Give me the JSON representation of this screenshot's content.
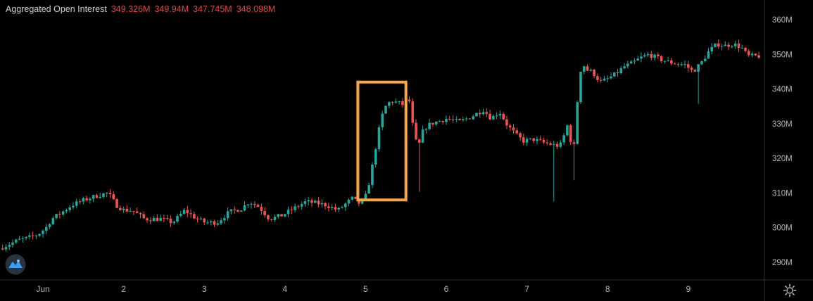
{
  "legend": {
    "title": "Aggregated Open Interest",
    "values": [
      "349.326M",
      "349.94M",
      "347.745M",
      "348.098M"
    ]
  },
  "colors": {
    "background": "#000000",
    "up": "#26a69a",
    "down": "#ef5350",
    "highlight": "#f7a64a",
    "axis_text": "#b2b5be",
    "legend_value": "#e0484b"
  },
  "icons": {
    "logo": "tradingview-logo-icon",
    "settings": "gear-icon"
  },
  "chart_data": {
    "type": "candlestick",
    "title": "Aggregated Open Interest",
    "ylim": [
      284,
      364
    ],
    "y_ticks": [
      "290M",
      "300M",
      "310M",
      "320M",
      "330M",
      "340M",
      "350M",
      "360M"
    ],
    "y_tick_values": [
      290,
      300,
      310,
      320,
      330,
      340,
      350,
      360
    ],
    "x_ticks": [
      "Jun",
      "2",
      "3",
      "4",
      "5",
      "6",
      "7",
      "8",
      "9"
    ],
    "x_tick_days": [
      1,
      2,
      3,
      4,
      5,
      6,
      7,
      8,
      9
    ],
    "xlim_days": [
      0.5,
      9.93
    ],
    "series_anchors": [
      [
        0.5,
        294
      ],
      [
        0.6,
        295
      ],
      [
        0.75,
        296.5
      ],
      [
        0.85,
        297
      ],
      [
        0.98,
        298
      ],
      [
        1.08,
        300
      ],
      [
        1.15,
        302.5
      ],
      [
        1.25,
        304
      ],
      [
        1.4,
        306.5
      ],
      [
        1.55,
        308
      ],
      [
        1.75,
        309.5
      ],
      [
        1.85,
        310
      ],
      [
        1.95,
        306.5
      ],
      [
        2.05,
        305
      ],
      [
        2.15,
        305
      ],
      [
        2.3,
        302.5
      ],
      [
        2.5,
        302.5
      ],
      [
        2.65,
        301.5
      ],
      [
        2.8,
        305
      ],
      [
        2.95,
        302.5
      ],
      [
        3.05,
        301.5
      ],
      [
        3.2,
        301.5
      ],
      [
        3.35,
        304.5
      ],
      [
        3.5,
        305.5
      ],
      [
        3.6,
        307.5
      ],
      [
        3.72,
        306
      ],
      [
        3.85,
        302.5
      ],
      [
        4.0,
        303.5
      ],
      [
        4.15,
        305.5
      ],
      [
        4.3,
        307.5
      ],
      [
        4.45,
        307
      ],
      [
        4.55,
        306.5
      ],
      [
        4.7,
        305
      ],
      [
        4.8,
        307
      ],
      [
        4.88,
        308.5
      ],
      [
        4.95,
        307
      ],
      [
        5.0,
        307.5
      ],
      [
        5.05,
        309.5
      ],
      [
        5.1,
        314.5
      ],
      [
        5.15,
        321
      ],
      [
        5.2,
        327.5
      ],
      [
        5.25,
        332.5
      ],
      [
        5.3,
        335.5
      ],
      [
        5.36,
        336.5
      ],
      [
        5.45,
        336
      ],
      [
        5.5,
        335.5
      ],
      [
        5.56,
        337
      ],
      [
        5.6,
        336
      ],
      [
        5.64,
        326
      ],
      [
        5.7,
        323.5
      ],
      [
        5.76,
        328.5
      ],
      [
        5.85,
        330
      ],
      [
        6.05,
        331.5
      ],
      [
        6.2,
        330.5
      ],
      [
        6.35,
        332
      ],
      [
        6.5,
        334
      ],
      [
        6.6,
        331.5
      ],
      [
        6.7,
        333.5
      ],
      [
        6.8,
        329.5
      ],
      [
        6.92,
        326.5
      ],
      [
        7.0,
        325
      ],
      [
        7.12,
        325.5
      ],
      [
        7.25,
        324.5
      ],
      [
        7.35,
        324
      ],
      [
        7.45,
        323.5
      ],
      [
        7.5,
        326.5
      ],
      [
        7.55,
        330
      ],
      [
        7.58,
        325.5
      ],
      [
        7.62,
        322
      ],
      [
        7.66,
        335
      ],
      [
        7.72,
        348
      ],
      [
        7.78,
        345.5
      ],
      [
        7.85,
        345
      ],
      [
        7.95,
        342
      ],
      [
        8.05,
        343
      ],
      [
        8.15,
        344.5
      ],
      [
        8.25,
        346.5
      ],
      [
        8.35,
        347.5
      ],
      [
        8.45,
        349
      ],
      [
        8.55,
        350
      ],
      [
        8.7,
        348.5
      ],
      [
        8.85,
        347.5
      ],
      [
        9.0,
        347
      ],
      [
        9.1,
        345
      ],
      [
        9.2,
        347.5
      ],
      [
        9.3,
        351
      ],
      [
        9.4,
        353
      ],
      [
        9.5,
        352.5
      ],
      [
        9.6,
        353
      ],
      [
        9.7,
        352
      ],
      [
        9.78,
        349.5
      ]
    ],
    "highlight_box": {
      "x_range_days": [
        5.0,
        5.5
      ],
      "y_range": [
        308,
        342
      ]
    }
  }
}
